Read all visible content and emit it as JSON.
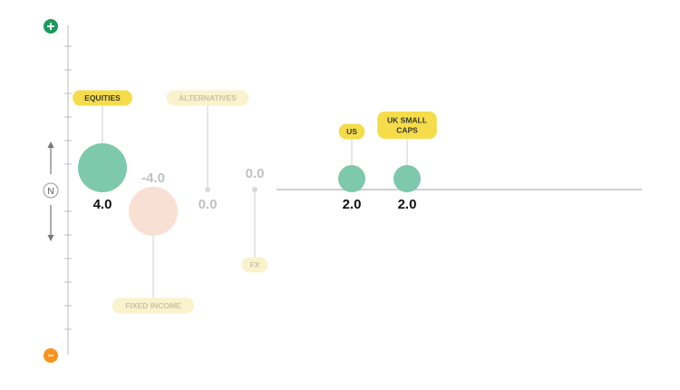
{
  "scale": {
    "top_icon": "plus-icon",
    "top_color": "#1a9a5c",
    "bottom_icon": "minus-icon",
    "bottom_color": "#f7941d",
    "neutral_label": "N"
  },
  "colors": {
    "positive_bubble": "#7ec8ad",
    "negative_bubble": "#f9e0d5",
    "neutral_bubble": "#d8d8d8",
    "tag_active": "#f5dc4a",
    "tag_faded": "#faf2cc",
    "axis": "#bdbdbd"
  },
  "chart_data": {
    "type": "scatter",
    "title": "",
    "xlabel": "",
    "ylabel": "",
    "ylim": [
      -8,
      8
    ],
    "grid": false,
    "points": [
      {
        "label": "EQUITIES",
        "value": 4.0,
        "value_label": "4.0",
        "faded": false
      },
      {
        "label": "FIXED INCOME",
        "value": -4.0,
        "value_label": "-4.0",
        "faded": true
      },
      {
        "label": "ALTERNATIVES",
        "value": 0.0,
        "value_label": "0.0",
        "faded": true
      },
      {
        "label": "FX",
        "value": 0.0,
        "value_label": "0.0",
        "faded": true
      },
      {
        "label": "US",
        "value": 2.0,
        "value_label": "2.0",
        "faded": false
      },
      {
        "label": "UK SMALL\nCAPS",
        "value": 2.0,
        "value_label": "2.0",
        "faded": false
      }
    ]
  }
}
